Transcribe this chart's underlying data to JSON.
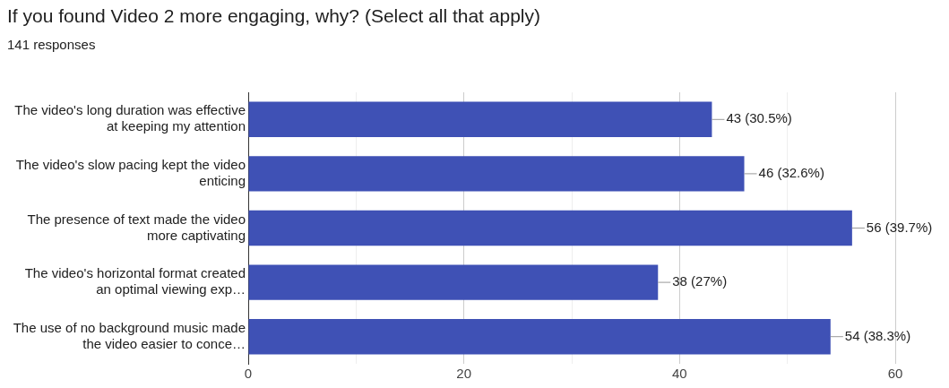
{
  "chart_data": {
    "type": "bar",
    "orientation": "horizontal",
    "title": "If you found Video 2 more engaging, why? (Select all that apply)",
    "subtitle": "141 responses",
    "categories": [
      "The video's long duration was effective at keeping my attention",
      "The video's slow pacing kept the video enticing",
      "The presence of text made the video more captivating",
      "The video's horizontal format created an optimal viewing exp…",
      "The use of no background music made the video easier to conce…"
    ],
    "values": [
      43,
      46,
      56,
      38,
      54
    ],
    "value_labels": [
      "43 (30.5%)",
      "46 (32.6%)",
      "56 (39.7%)",
      "38 (27%)",
      "54 (38.3%)"
    ],
    "color": "#3f51b5",
    "xlim": [
      0,
      60
    ],
    "xticks": [
      0,
      {
        "value": 10,
        "label": null
      },
      20,
      {
        "value": 30,
        "label": null
      },
      40,
      {
        "value": 50,
        "label": null
      },
      60
    ],
    "grid": "x",
    "legend": false
  }
}
